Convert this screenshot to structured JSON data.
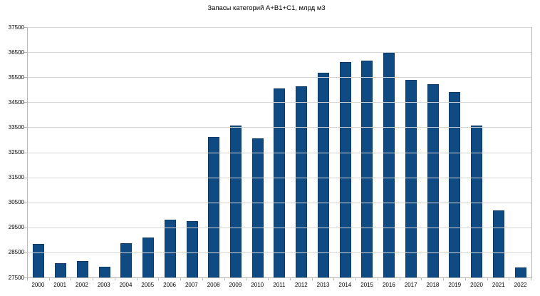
{
  "chart_data": {
    "type": "bar",
    "title": "Запасы категорий А+В1+С1, млрд м3",
    "categories": [
      "2000",
      "2001",
      "2002",
      "2003",
      "2004",
      "2005",
      "2006",
      "2007",
      "2008",
      "2009",
      "2010",
      "2011",
      "2012",
      "2013",
      "2014",
      "2015",
      "2016",
      "2017",
      "2018",
      "2019",
      "2020",
      "2021",
      "2022"
    ],
    "values": [
      28850,
      28060,
      28150,
      27940,
      28880,
      29090,
      29820,
      29760,
      33120,
      33580,
      33050,
      35050,
      35140,
      35690,
      36100,
      36170,
      36480,
      35390,
      35210,
      34900,
      33570,
      30190,
      27910
    ],
    "ylabel": "",
    "xlabel": "",
    "ylim": [
      27500,
      37500
    ],
    "ytick_step": 1000,
    "ytick_labels": [
      "27500",
      "28500",
      "29500",
      "30500",
      "31500",
      "32500",
      "33500",
      "34500",
      "35500",
      "36500",
      "37500"
    ],
    "grid": "horizontal",
    "legend_position": "none",
    "colors": {
      "bar_fill": "#104a82",
      "bar_border": "#0d3a69",
      "gridline": "#d4d4d4",
      "axis": "#b3b3b3",
      "text": "#000000",
      "background": "#ffffff"
    }
  }
}
